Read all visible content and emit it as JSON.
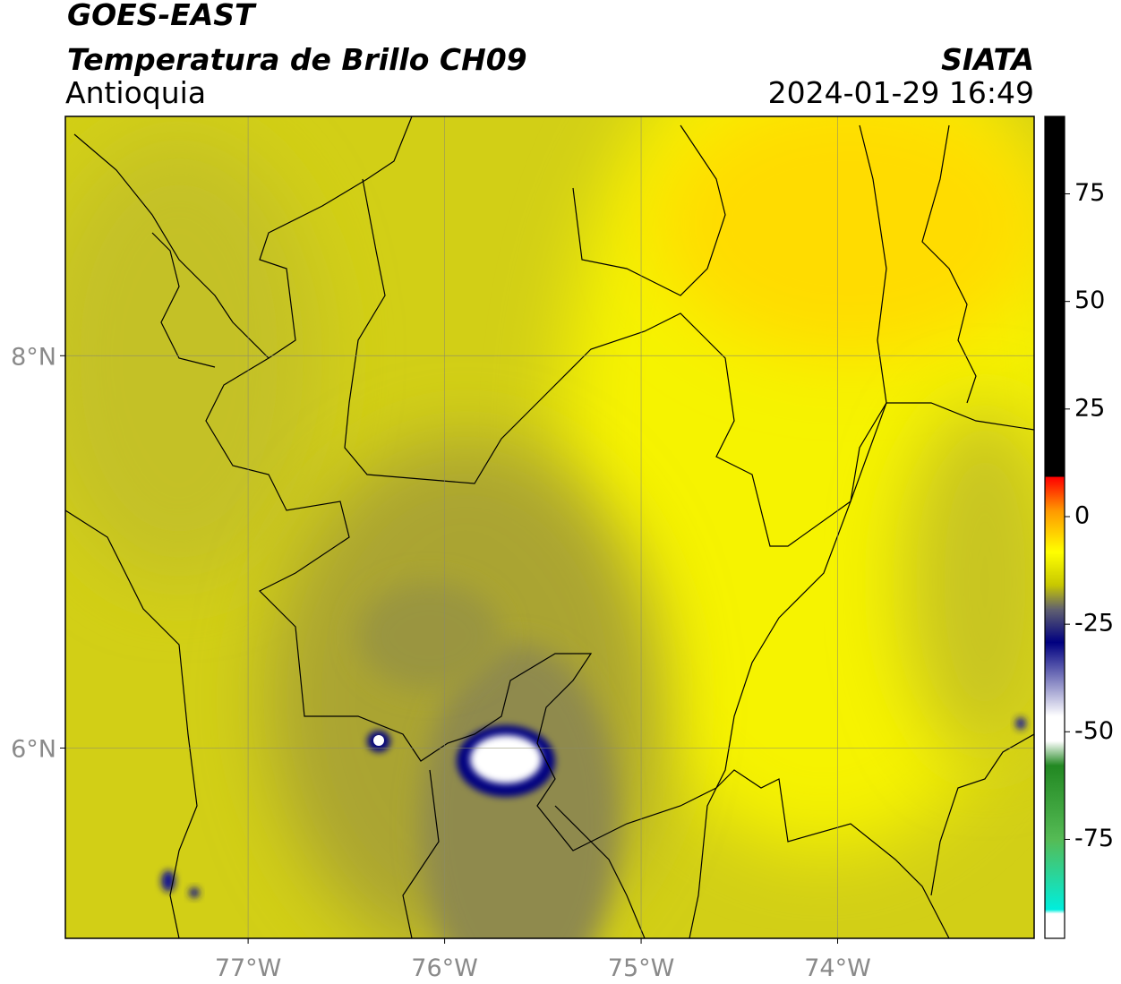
{
  "header": {
    "title": "GOES-EAST",
    "subtitle": "Temperatura de Brillo CH09",
    "region": "Antioquia",
    "source": "SIATA",
    "datetime": "2024-01-29 16:49"
  },
  "map": {
    "xlim": [
      -77.93,
      -73.0
    ],
    "ylim": [
      5.03,
      9.22
    ],
    "grid": true,
    "xticks": [
      {
        "value": -77,
        "label": "77°W"
      },
      {
        "value": -76,
        "label": "76°W"
      },
      {
        "value": -75,
        "label": "75°W"
      },
      {
        "value": -74,
        "label": "74°W"
      }
    ],
    "yticks": [
      {
        "value": 6,
        "label": "6°N"
      },
      {
        "value": 8,
        "label": "8°N"
      }
    ]
  },
  "colorbar": {
    "lim": [
      -98,
      93
    ],
    "ticks": [
      -75,
      -50,
      -25,
      0,
      25,
      50,
      75
    ]
  }
}
